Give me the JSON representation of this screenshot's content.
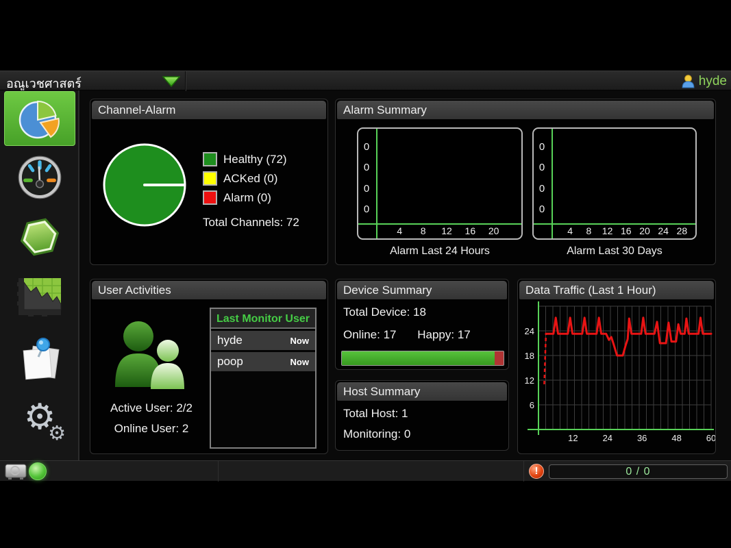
{
  "top_bar": {
    "title": "อณูเวชศาสตร์",
    "user": "hyde"
  },
  "sidebar": {
    "items": [
      {
        "id": "dashboard",
        "icon": "pie-chart-icon",
        "active": true
      },
      {
        "id": "gauge",
        "icon": "gauge-icon",
        "active": false
      },
      {
        "id": "hexagon",
        "icon": "hexagon-icon",
        "active": false
      },
      {
        "id": "graphs",
        "icon": "area-chart-icon",
        "active": false
      },
      {
        "id": "notes",
        "icon": "notes-pin-icon",
        "active": false
      },
      {
        "id": "settings",
        "icon": "gears-icon",
        "active": false
      }
    ]
  },
  "icons": {
    "gear_glyph": "⚙"
  },
  "panels": {
    "channel_alarm": {
      "title": "Channel-Alarm",
      "total_label": "Total Channels: 72"
    },
    "alarm_summary": {
      "title": "Alarm Summary",
      "captions": [
        "Alarm Last 24 Hours",
        "Alarm Last 30 Days"
      ]
    },
    "user_activities": {
      "title": "User Activities",
      "active_label": "Active User: 2/2",
      "online_label": "Online User: 2",
      "table": {
        "header": "Last Monitor User",
        "rows": [
          {
            "user": "hyde",
            "time": "Now"
          },
          {
            "user": "poop",
            "time": "Now"
          }
        ]
      }
    },
    "device_summary": {
      "title": "Device Summary",
      "total": "Total Device: 18",
      "online": "Online: 17",
      "happy": "Happy: 17",
      "progress_pct": 94.4,
      "progress_color": "#44b32e",
      "progress_bg_color": "#b03434"
    },
    "host_summary": {
      "title": "Host Summary",
      "total": "Total Host: 1",
      "monitoring": "Monitoring: 0"
    },
    "data_traffic": {
      "title": "Data Traffic (Last 1 Hour)"
    }
  },
  "status_bar": {
    "counter": "0 / 0"
  },
  "colors": {
    "axis_green": "#58d258",
    "traffic_red": "#e81414",
    "accent_green": "#8fd45c",
    "selected_tile_green": "#5cb838"
  },
  "chart_data": [
    {
      "id": "channel_alarm_pie",
      "type": "pie",
      "title": "Channel-Alarm",
      "slices": [
        {
          "label": "Healthy",
          "value": 72,
          "color": "#1e8e1e"
        },
        {
          "label": "ACKed",
          "value": 0,
          "color": "#ffff00"
        },
        {
          "label": "Alarm",
          "value": 0,
          "color": "#ee1111"
        }
      ],
      "total": 72
    },
    {
      "id": "alarm_last_24h",
      "type": "bar",
      "title": "Alarm Last 24 Hours",
      "x_ticks": [
        4,
        8,
        12,
        16,
        20
      ],
      "x_range": [
        0,
        24
      ],
      "y_ticks": [
        "0",
        "0",
        "0",
        "0"
      ],
      "values": [],
      "axis_color": "#58d258"
    },
    {
      "id": "alarm_last_30d",
      "type": "bar",
      "title": "Alarm Last 30 Days",
      "x_ticks": [
        4,
        8,
        12,
        16,
        20,
        24,
        28
      ],
      "x_range": [
        0,
        30
      ],
      "y_ticks": [
        "0",
        "0",
        "0",
        "0"
      ],
      "values": [],
      "axis_color": "#58d258"
    },
    {
      "id": "data_traffic",
      "type": "line",
      "title": "Data Traffic (Last 1 Hour)",
      "x_ticks": [
        12,
        24,
        36,
        48,
        60
      ],
      "y_ticks": [
        6,
        12,
        18,
        24
      ],
      "x_range": [
        0,
        60
      ],
      "y_range": [
        0,
        30
      ],
      "line_color": "#e81414",
      "axis_color": "#58d258",
      "grid_color": "#3d3d3d",
      "intro_dash": [
        [
          2,
          11
        ],
        [
          2.6,
          23.3
        ]
      ],
      "points": [
        [
          2.6,
          23.3
        ],
        [
          5.2,
          23.3
        ],
        [
          6,
          27.2
        ],
        [
          6.8,
          23.3
        ],
        [
          10.2,
          23.3
        ],
        [
          11,
          27.2
        ],
        [
          11.8,
          23.3
        ],
        [
          15.2,
          23.3
        ],
        [
          16,
          27.2
        ],
        [
          16.8,
          23.3
        ],
        [
          20.2,
          23.3
        ],
        [
          21,
          27.2
        ],
        [
          21.8,
          23.3
        ],
        [
          23.5,
          23.3
        ],
        [
          24.5,
          21.8
        ],
        [
          25.3,
          22.5
        ],
        [
          26,
          21
        ],
        [
          27.3,
          18
        ],
        [
          29.3,
          18
        ],
        [
          30.3,
          20.5
        ],
        [
          31,
          22
        ],
        [
          31.5,
          27
        ],
        [
          32.3,
          23.3
        ],
        [
          35.7,
          23.3
        ],
        [
          36.4,
          27.2
        ],
        [
          37.2,
          23.3
        ],
        [
          40.3,
          23.3
        ],
        [
          41.2,
          26.2
        ],
        [
          42.2,
          21
        ],
        [
          44.3,
          21
        ],
        [
          45.2,
          26
        ],
        [
          46.2,
          21.4
        ],
        [
          47.8,
          21.4
        ],
        [
          48.6,
          25.6
        ],
        [
          49.4,
          23.3
        ],
        [
          50.8,
          23.3
        ],
        [
          51.4,
          27
        ],
        [
          52.2,
          23.3
        ],
        [
          55.6,
          23.3
        ],
        [
          56.3,
          27.2
        ],
        [
          57.1,
          23.3
        ],
        [
          58,
          23.3
        ],
        [
          60,
          23.3
        ]
      ]
    }
  ]
}
